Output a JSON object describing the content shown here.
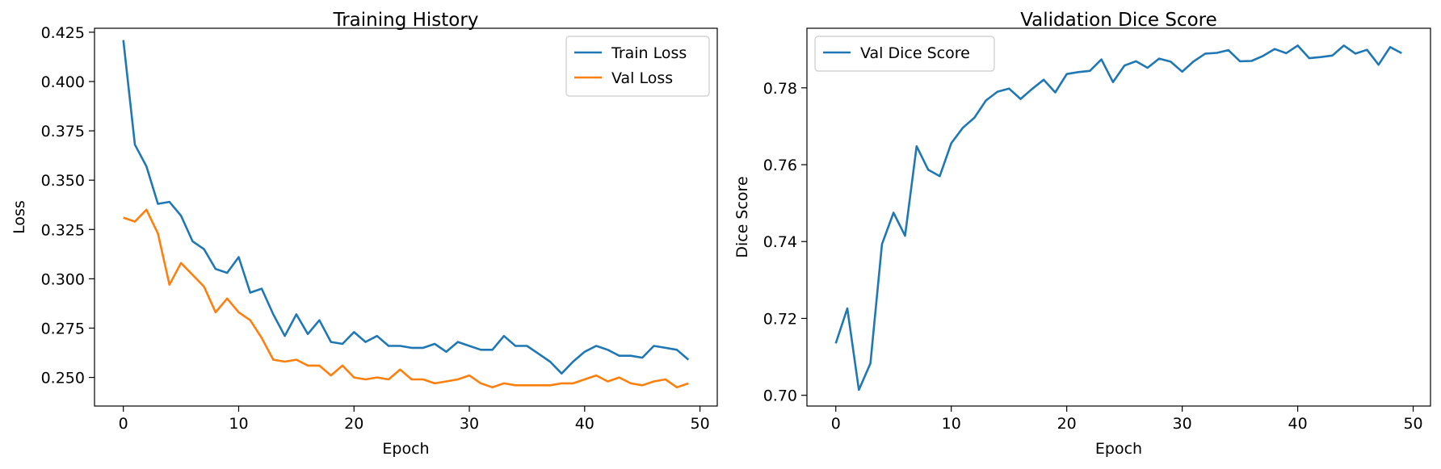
{
  "chart_data": [
    {
      "type": "line",
      "title": "Training History",
      "xlabel": "Epoch",
      "ylabel": "Loss",
      "xlim": [
        -2.5,
        51.5
      ],
      "ylim": [
        0.2355,
        0.427
      ],
      "xticks": [
        0,
        10,
        20,
        30,
        40,
        50
      ],
      "yticks": [
        0.25,
        0.275,
        0.3,
        0.325,
        0.35,
        0.375,
        0.4,
        0.425
      ],
      "ytick_labels": [
        "0.250",
        "0.275",
        "0.300",
        "0.325",
        "0.350",
        "0.375",
        "0.400",
        "0.425"
      ],
      "grid": false,
      "legend": "top-right",
      "series": [
        {
          "name": "Train Loss",
          "color": "#1f77b4",
          "x": [
            0,
            1,
            2,
            3,
            4,
            5,
            6,
            7,
            8,
            9,
            10,
            11,
            12,
            13,
            14,
            15,
            16,
            17,
            18,
            19,
            20,
            21,
            22,
            23,
            24,
            25,
            26,
            27,
            28,
            29,
            30,
            31,
            32,
            33,
            34,
            35,
            36,
            37,
            38,
            39,
            40,
            41,
            42,
            43,
            44,
            45,
            46,
            47,
            48,
            49
          ],
          "values": [
            0.421,
            0.368,
            0.357,
            0.338,
            0.339,
            0.332,
            0.319,
            0.315,
            0.305,
            0.303,
            0.311,
            0.293,
            0.295,
            0.282,
            0.271,
            0.282,
            0.272,
            0.279,
            0.268,
            0.267,
            0.273,
            0.268,
            0.271,
            0.266,
            0.266,
            0.265,
            0.265,
            0.267,
            0.263,
            0.268,
            0.266,
            0.264,
            0.264,
            0.271,
            0.266,
            0.266,
            0.262,
            0.258,
            0.252,
            0.258,
            0.263,
            0.266,
            0.264,
            0.261,
            0.261,
            0.26,
            0.266,
            0.265,
            0.264,
            0.259
          ]
        },
        {
          "name": "Val Loss",
          "color": "#ff7f0e",
          "x": [
            0,
            1,
            2,
            3,
            4,
            5,
            6,
            7,
            8,
            9,
            10,
            11,
            12,
            13,
            14,
            15,
            16,
            17,
            18,
            19,
            20,
            21,
            22,
            23,
            24,
            25,
            26,
            27,
            28,
            29,
            30,
            31,
            32,
            33,
            34,
            35,
            36,
            37,
            38,
            39,
            40,
            41,
            42,
            43,
            44,
            45,
            46,
            47,
            48,
            49
          ],
          "values": [
            0.331,
            0.329,
            0.335,
            0.323,
            0.297,
            0.308,
            0.302,
            0.296,
            0.283,
            0.29,
            0.283,
            0.279,
            0.27,
            0.259,
            0.258,
            0.259,
            0.256,
            0.256,
            0.251,
            0.256,
            0.25,
            0.249,
            0.25,
            0.249,
            0.254,
            0.249,
            0.249,
            0.247,
            0.248,
            0.249,
            0.251,
            0.247,
            0.245,
            0.247,
            0.246,
            0.246,
            0.246,
            0.246,
            0.247,
            0.247,
            0.249,
            0.251,
            0.248,
            0.25,
            0.247,
            0.246,
            0.248,
            0.249,
            0.245,
            0.247
          ]
        }
      ]
    },
    {
      "type": "line",
      "title": "Validation Dice Score",
      "xlabel": "Epoch",
      "ylabel": "Dice Score",
      "xlim": [
        -2.5,
        51.5
      ],
      "ylim": [
        0.6972,
        0.7955
      ],
      "xticks": [
        0,
        10,
        20,
        30,
        40,
        50
      ],
      "yticks": [
        0.7,
        0.72,
        0.74,
        0.76,
        0.78
      ],
      "ytick_labels": [
        "0.70",
        "0.72",
        "0.74",
        "0.76",
        "0.78"
      ],
      "grid": false,
      "legend": "top-left",
      "series": [
        {
          "name": "Val Dice Score",
          "color": "#1f77b4",
          "x": [
            0,
            1,
            2,
            3,
            4,
            5,
            6,
            7,
            8,
            9,
            10,
            11,
            12,
            13,
            14,
            15,
            16,
            17,
            18,
            19,
            20,
            21,
            22,
            23,
            24,
            25,
            26,
            27,
            28,
            29,
            30,
            31,
            32,
            33,
            34,
            35,
            36,
            37,
            38,
            39,
            40,
            41,
            42,
            43,
            44,
            45,
            46,
            47,
            48,
            49
          ],
          "values": [
            0.7135,
            0.7226,
            0.7014,
            0.7083,
            0.7393,
            0.7475,
            0.7415,
            0.7648,
            0.7587,
            0.757,
            0.7656,
            0.7696,
            0.7722,
            0.7767,
            0.779,
            0.7798,
            0.7771,
            0.7797,
            0.7821,
            0.7788,
            0.7836,
            0.7841,
            0.7844,
            0.7874,
            0.7815,
            0.7858,
            0.7869,
            0.7852,
            0.7876,
            0.7868,
            0.7842,
            0.7869,
            0.7889,
            0.7891,
            0.7898,
            0.7869,
            0.787,
            0.7883,
            0.7901,
            0.789,
            0.791,
            0.7877,
            0.788,
            0.7884,
            0.791,
            0.7889,
            0.7899,
            0.786,
            0.7906,
            0.789
          ]
        }
      ]
    }
  ]
}
